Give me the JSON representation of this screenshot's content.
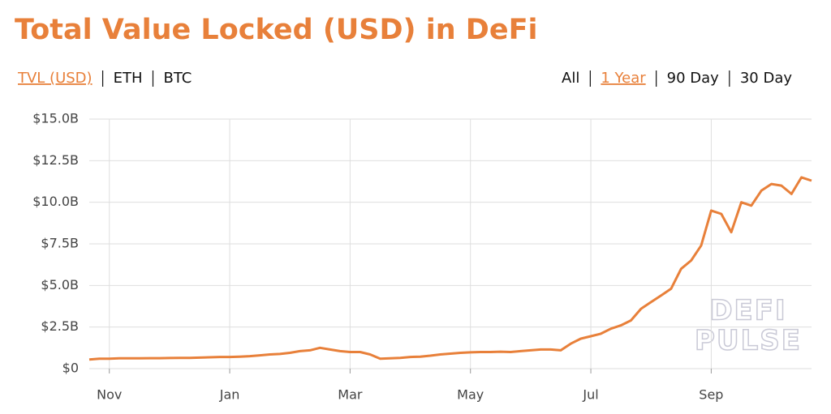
{
  "chart_data": {
    "type": "line",
    "title": "Total Value Locked (USD) in DeFi",
    "categories": [
      null,
      null,
      "Nov",
      null,
      null,
      null,
      null,
      null,
      null,
      null,
      null,
      null,
      null,
      null,
      "Jan",
      null,
      null,
      null,
      null,
      null,
      null,
      null,
      null,
      null,
      null,
      null,
      "Mar",
      null,
      null,
      null,
      null,
      null,
      null,
      null,
      null,
      null,
      null,
      null,
      "May",
      null,
      null,
      null,
      null,
      null,
      null,
      null,
      null,
      null,
      null,
      null,
      "Jul",
      null,
      null,
      null,
      null,
      null,
      null,
      null,
      null,
      null,
      null,
      null,
      "Sep",
      null,
      null,
      null,
      null,
      null,
      null,
      null,
      null,
      null,
      null
    ],
    "series": [
      {
        "name": "TVL (USD)",
        "color": "#e8803a",
        "values": [
          0.55,
          0.6,
          0.6,
          0.62,
          0.62,
          0.62,
          0.63,
          0.63,
          0.64,
          0.65,
          0.65,
          0.66,
          0.68,
          0.7,
          0.7,
          0.72,
          0.75,
          0.8,
          0.85,
          0.88,
          0.95,
          1.05,
          1.1,
          1.25,
          1.15,
          1.05,
          1.0,
          1.0,
          0.85,
          0.6,
          0.62,
          0.65,
          0.7,
          0.72,
          0.78,
          0.85,
          0.9,
          0.95,
          0.98,
          1.0,
          1.0,
          1.02,
          1.0,
          1.05,
          1.1,
          1.15,
          1.15,
          1.1,
          1.5,
          1.8,
          1.95,
          2.1,
          2.4,
          2.6,
          2.9,
          3.6,
          4.0,
          4.4,
          4.8,
          6.0,
          6.5,
          7.4,
          9.5,
          9.3,
          8.2,
          10.0,
          9.8,
          10.7,
          11.1,
          11.0,
          10.5,
          11.5,
          11.3
        ]
      }
    ],
    "ylim": [
      0,
      15
    ],
    "yticks": [
      {
        "value": 0,
        "label": "$0"
      },
      {
        "value": 2.5,
        "label": "$2.5B"
      },
      {
        "value": 5,
        "label": "$5.0B"
      },
      {
        "value": 7.5,
        "label": "$7.5B"
      },
      {
        "value": 10,
        "label": "$10.0B"
      },
      {
        "value": 12.5,
        "label": "$12.5B"
      },
      {
        "value": 15,
        "label": "$15.0B"
      }
    ],
    "grid": true
  },
  "controls": {
    "metrics": [
      "TVL (USD)",
      "ETH",
      "BTC"
    ],
    "active_metric": 0,
    "ranges": [
      "All",
      "1 Year",
      "90 Day",
      "30 Day"
    ],
    "active_range": 1
  },
  "watermark": [
    "DEFI",
    "PULSE"
  ]
}
